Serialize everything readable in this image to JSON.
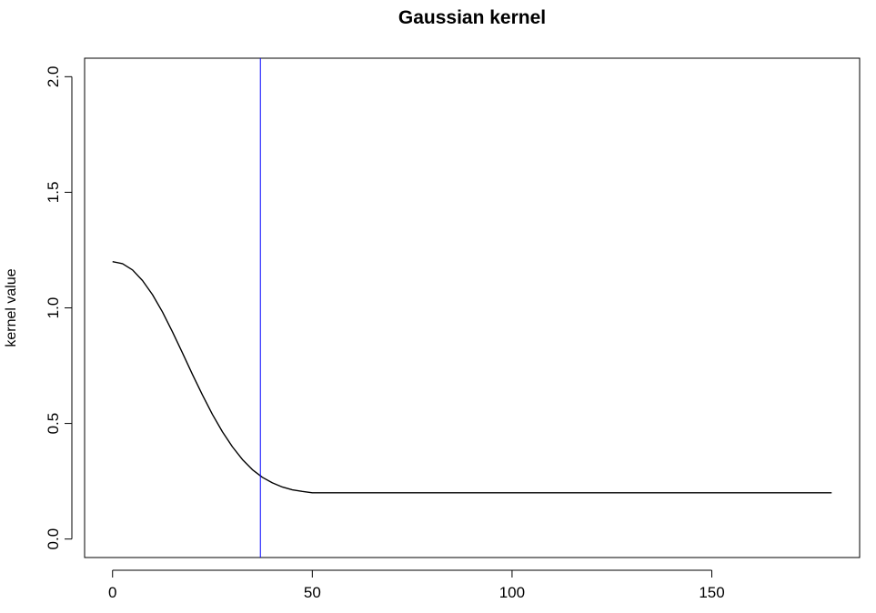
{
  "chart_data": {
    "type": "line",
    "title": "Gaussian kernel",
    "xlabel": "",
    "ylabel": "kernel value",
    "xlim": [
      -7,
      187
    ],
    "ylim": [
      -0.08,
      2.08
    ],
    "x_ticks": [
      0,
      50,
      100,
      150
    ],
    "x_tick_labels": [
      "0",
      "50",
      "100",
      "150"
    ],
    "y_ticks": [
      0.0,
      0.5,
      1.0,
      1.5,
      2.0
    ],
    "y_tick_labels": [
      "0.0",
      "0.5",
      "1.0",
      "1.5",
      "2.0"
    ],
    "grid": false,
    "colors": {
      "series": "#000000",
      "vline": "#0000ff",
      "frame": "#000000"
    },
    "series": [
      {
        "x": [
          0,
          2.5,
          5,
          7.5,
          10,
          12.5,
          15,
          17.5,
          20,
          22.5,
          25,
          27.5,
          30,
          32.5,
          35,
          37.5,
          40,
          42.5,
          45,
          47.5,
          50,
          60,
          80,
          100,
          120,
          140,
          160,
          180
        ],
        "values": [
          1.2,
          1.191,
          1.164,
          1.118,
          1.057,
          0.982,
          0.896,
          0.805,
          0.712,
          0.623,
          0.539,
          0.464,
          0.399,
          0.344,
          0.3,
          0.267,
          0.243,
          0.225,
          0.213,
          0.206,
          0.2,
          0.2,
          0.2,
          0.2,
          0.2,
          0.2,
          0.2,
          0.2
        ]
      }
    ],
    "vlines": [
      37
    ]
  }
}
